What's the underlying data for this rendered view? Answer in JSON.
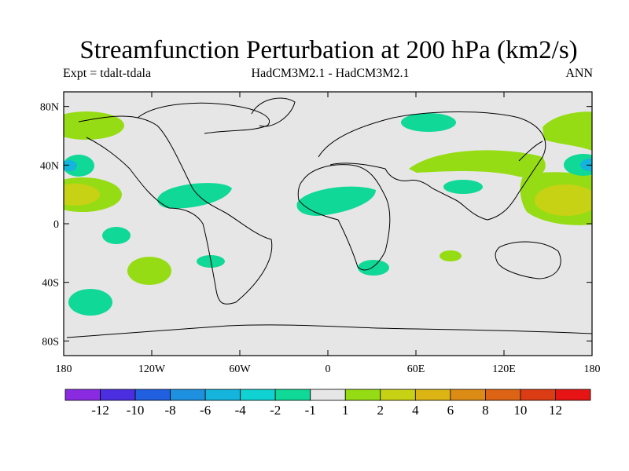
{
  "title": "Streamfunction Perturbation at 200 hPa (km2/s)",
  "left_label": "Expt = tdalt-tdala",
  "center_label": "HadCM3M2.1 - HadCM3M2.1",
  "right_label": "ANN",
  "colors": {
    "background_fill": "#e6e6e6",
    "coastline": "#000000"
  },
  "lat_ticks": [
    {
      "value": 80,
      "label": "80N"
    },
    {
      "value": 40,
      "label": "40N"
    },
    {
      "value": 0,
      "label": "0"
    },
    {
      "value": -40,
      "label": "40S"
    },
    {
      "value": -80,
      "label": "80S"
    }
  ],
  "lon_ticks": [
    {
      "value": -180,
      "label": "180"
    },
    {
      "value": -120,
      "label": "120W"
    },
    {
      "value": -60,
      "label": "60W"
    },
    {
      "value": 0,
      "label": "0"
    },
    {
      "value": 60,
      "label": "60E"
    },
    {
      "value": 120,
      "label": "120E"
    },
    {
      "value": 180,
      "label": "180"
    }
  ],
  "colorbar": {
    "colors": [
      "#8a2be2",
      "#4b2ee0",
      "#1f5fe0",
      "#1e90e0",
      "#14b4dc",
      "#10d2d2",
      "#10d896",
      "#e6e6e6",
      "#96dc14",
      "#c8d214",
      "#dcb414",
      "#dc8c14",
      "#dc6414",
      "#dc3c14",
      "#e61414"
    ],
    "labels": [
      "-12",
      "-10",
      "-8",
      "-6",
      "-4",
      "-2",
      "-1",
      "1",
      "2",
      "4",
      "6",
      "8",
      "10",
      "12"
    ]
  }
}
